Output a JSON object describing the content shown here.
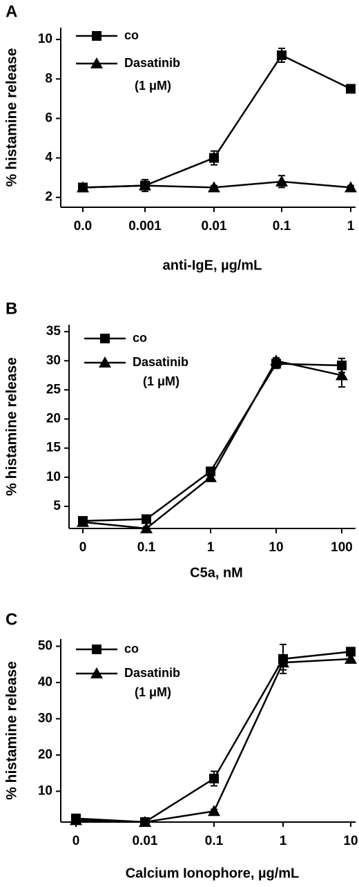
{
  "chart_data": [
    {
      "type": "line",
      "label": "A",
      "y_label": "% histamine release",
      "x_label": "anti-IgE, µg/mL",
      "categories": [
        "0.0",
        "0.001",
        "0.01",
        "0.1",
        "1"
      ],
      "ylim": [
        1.5,
        10.6
      ],
      "yticks": [
        2,
        4,
        6,
        8,
        10
      ],
      "series": [
        {
          "name": "co",
          "marker": "square",
          "color": "#000000",
          "values": [
            2.5,
            2.6,
            4.0,
            9.2,
            7.5
          ],
          "errors": [
            0.15,
            0.2,
            0.35,
            0.35,
            0.2
          ]
        },
        {
          "name": "Dasatinib",
          "note": "(1 μM)",
          "marker": "triangle",
          "color": "#000000",
          "values": [
            2.5,
            2.6,
            2.5,
            2.8,
            2.5
          ],
          "errors": [
            0.1,
            0.3,
            0.1,
            0.3,
            0.1
          ]
        }
      ]
    },
    {
      "type": "line",
      "label": "B",
      "y_label": "% histamine release",
      "x_label": "C5a, nM",
      "categories": [
        "0",
        "0.1",
        "1",
        "10",
        "100"
      ],
      "ylim": [
        1.2,
        36.2
      ],
      "yticks": [
        5,
        10,
        15,
        20,
        25,
        30,
        35
      ],
      "series": [
        {
          "name": "co",
          "marker": "square",
          "color": "#000000",
          "values": [
            2.5,
            2.8,
            11,
            29.5,
            29.2
          ],
          "errors": [
            0.3,
            0.3,
            0.5,
            0.8,
            1.2
          ]
        },
        {
          "name": "Dasatinib",
          "note": "(1 μM)",
          "marker": "triangle",
          "color": "#000000",
          "values": [
            2.3,
            1.2,
            10,
            30,
            27.5
          ],
          "errors": [
            0.3,
            0.3,
            0.5,
            0.5,
            2
          ]
        }
      ]
    },
    {
      "type": "line",
      "label": "C",
      "y_label": "% histamine release",
      "x_label": "Calcium Ionophore, µg/mL",
      "categories": [
        "0",
        "0.01",
        "0.1",
        "1",
        "10"
      ],
      "ylim": [
        1.5,
        52
      ],
      "yticks": [
        10,
        20,
        30,
        40,
        50
      ],
      "series": [
        {
          "name": "co",
          "marker": "square",
          "color": "#000000",
          "values": [
            2.5,
            1.5,
            13.5,
            46.5,
            48.5
          ],
          "errors": [
            0.5,
            0.5,
            2,
            4,
            1
          ]
        },
        {
          "name": "Dasatinib",
          "note": "(1 μM)",
          "marker": "triangle",
          "color": "#000000",
          "values": [
            2,
            1.5,
            4.5,
            45.5,
            46.5
          ],
          "errors": [
            0.3,
            0.3,
            0.5,
            2,
            1
          ]
        }
      ]
    }
  ]
}
